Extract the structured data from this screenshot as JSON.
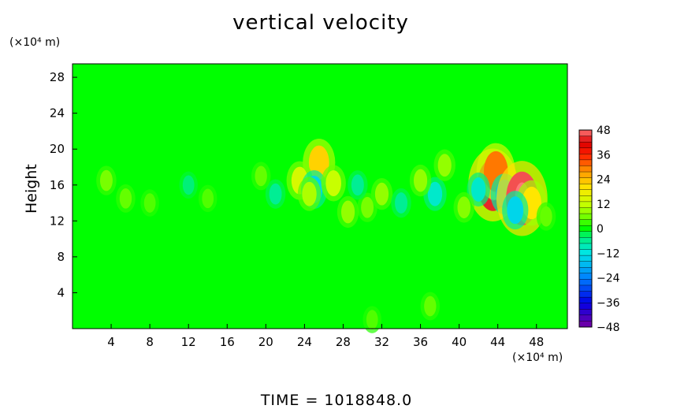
{
  "chart_data": {
    "type": "heatmap",
    "title": "vertical velocity",
    "xlabel": "",
    "ylabel": "Height",
    "x_unit": "(×10⁴ m)",
    "y_unit": "(×10⁴ m)",
    "xlim": [
      0,
      51.2
    ],
    "ylim": [
      0,
      29.5
    ],
    "xticks": [
      4,
      8,
      12,
      16,
      20,
      24,
      28,
      32,
      36,
      40,
      44,
      48
    ],
    "yticks": [
      4,
      8,
      12,
      16,
      20,
      24,
      28
    ],
    "colorbar": {
      "ticks": [
        48,
        36,
        24,
        12,
        0,
        -12,
        -24,
        -36,
        -48
      ],
      "range": [
        -48,
        48
      ],
      "levels": 33
    },
    "background_value": 0,
    "features": [
      {
        "x": 25.5,
        "y": 18.5,
        "value": 22
      },
      {
        "x": 23.5,
        "y": 16.5,
        "value": 14
      },
      {
        "x": 25.0,
        "y": 15.5,
        "value": -14
      },
      {
        "x": 27.0,
        "y": 16.2,
        "value": 12
      },
      {
        "x": 24.5,
        "y": 15.0,
        "value": 10
      },
      {
        "x": 43.5,
        "y": 16.0,
        "value": 44
      },
      {
        "x": 43.8,
        "y": 17.5,
        "value": 30
      },
      {
        "x": 44.7,
        "y": 15.0,
        "value": -16
      },
      {
        "x": 46.5,
        "y": 14.5,
        "value": 46
      },
      {
        "x": 47.5,
        "y": 14.0,
        "value": 20
      },
      {
        "x": 45.8,
        "y": 13.2,
        "value": -14
      },
      {
        "x": 42.0,
        "y": 15.5,
        "value": -10
      },
      {
        "x": 37.5,
        "y": 15.0,
        "value": -10
      },
      {
        "x": 38.5,
        "y": 18.2,
        "value": 8
      },
      {
        "x": 36.0,
        "y": 16.5,
        "value": 8
      },
      {
        "x": 32.0,
        "y": 15.0,
        "value": 8
      },
      {
        "x": 30.5,
        "y": 13.5,
        "value": 6
      },
      {
        "x": 34.0,
        "y": 14.0,
        "value": -6
      },
      {
        "x": 21.0,
        "y": 15.0,
        "value": -6
      },
      {
        "x": 19.5,
        "y": 17.0,
        "value": 5
      },
      {
        "x": 3.5,
        "y": 16.5,
        "value": 6
      },
      {
        "x": 5.5,
        "y": 14.5,
        "value": 5
      },
      {
        "x": 8.0,
        "y": 14.0,
        "value": 4
      },
      {
        "x": 12.0,
        "y": 16.0,
        "value": -4
      },
      {
        "x": 14.0,
        "y": 14.5,
        "value": 4
      },
      {
        "x": 28.5,
        "y": 13.0,
        "value": 8
      },
      {
        "x": 29.5,
        "y": 16.0,
        "value": -6
      },
      {
        "x": 40.5,
        "y": 13.5,
        "value": 7
      },
      {
        "x": 49.0,
        "y": 12.5,
        "value": 5
      },
      {
        "x": 37.0,
        "y": 2.5,
        "value": 5
      },
      {
        "x": 31.0,
        "y": 1.0,
        "value": 4
      }
    ],
    "time_label": "TIME = 1018848.0"
  }
}
